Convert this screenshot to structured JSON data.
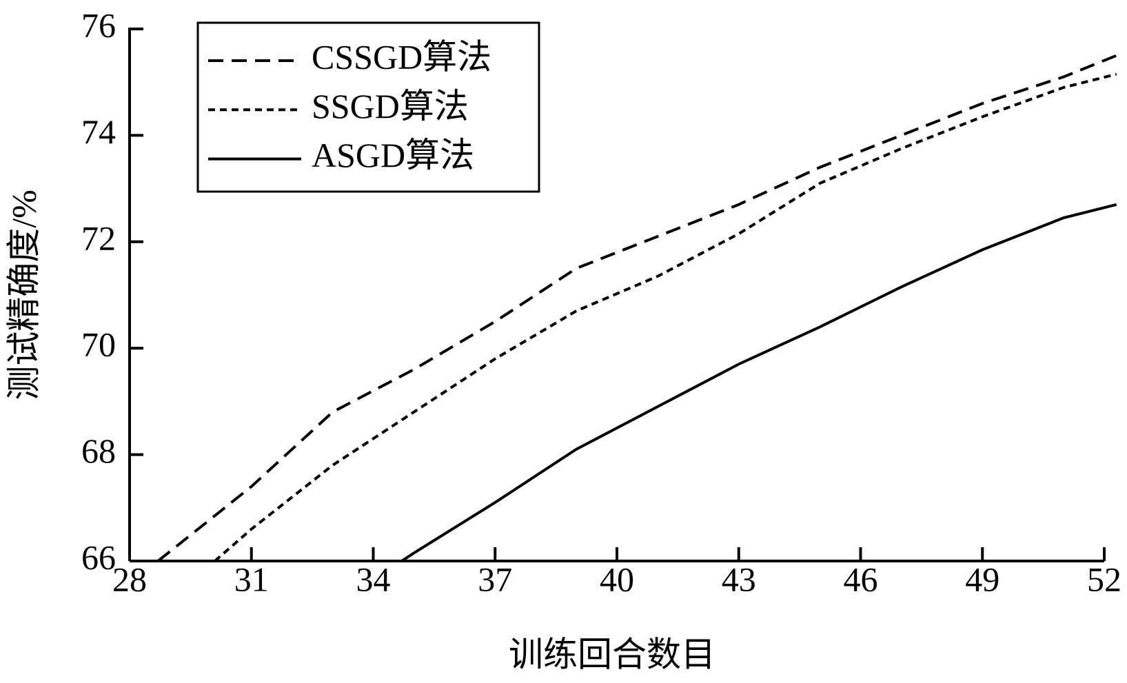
{
  "chart_data": {
    "type": "line",
    "x_label": "训练回合数目",
    "y_label": "测试精确度/%",
    "xlim": [
      28,
      52
    ],
    "xticks": [
      28,
      31,
      34,
      37,
      40,
      43,
      46,
      49,
      52
    ],
    "ylim": [
      66,
      76
    ],
    "yticks": [
      66,
      68,
      70,
      72,
      74,
      76
    ],
    "legend": "upper left",
    "series": [
      {
        "name": "CSSGD算法",
        "color": "#000000",
        "dash": "dashed",
        "x": [
          28.7,
          31,
          33,
          35,
          37,
          39,
          41,
          43,
          45,
          47,
          49,
          51,
          52.3
        ],
        "values": [
          66,
          67.4,
          68.8,
          69.6,
          70.5,
          71.5,
          72.1,
          72.7,
          73.4,
          74,
          74.6,
          75.1,
          75.5
        ]
      },
      {
        "name": "SSGD算法",
        "color": "#000000",
        "dash": "dotted",
        "x": [
          30.1,
          31,
          33,
          35,
          37,
          39,
          41,
          43,
          45,
          47,
          49,
          51,
          52.3
        ],
        "values": [
          66,
          66.6,
          67.8,
          68.8,
          69.8,
          70.7,
          71.35,
          72.15,
          73.1,
          73.75,
          74.35,
          74.9,
          75.15
        ]
      },
      {
        "name": "ASGD算法",
        "color": "#000000",
        "dash": "solid",
        "x": [
          34.7,
          35,
          37,
          39,
          41,
          43,
          45,
          47,
          49,
          51,
          52.3
        ],
        "values": [
          66,
          66.15,
          67.1,
          68.1,
          68.9,
          69.7,
          70.4,
          71.15,
          71.85,
          72.45,
          72.7
        ]
      }
    ]
  }
}
